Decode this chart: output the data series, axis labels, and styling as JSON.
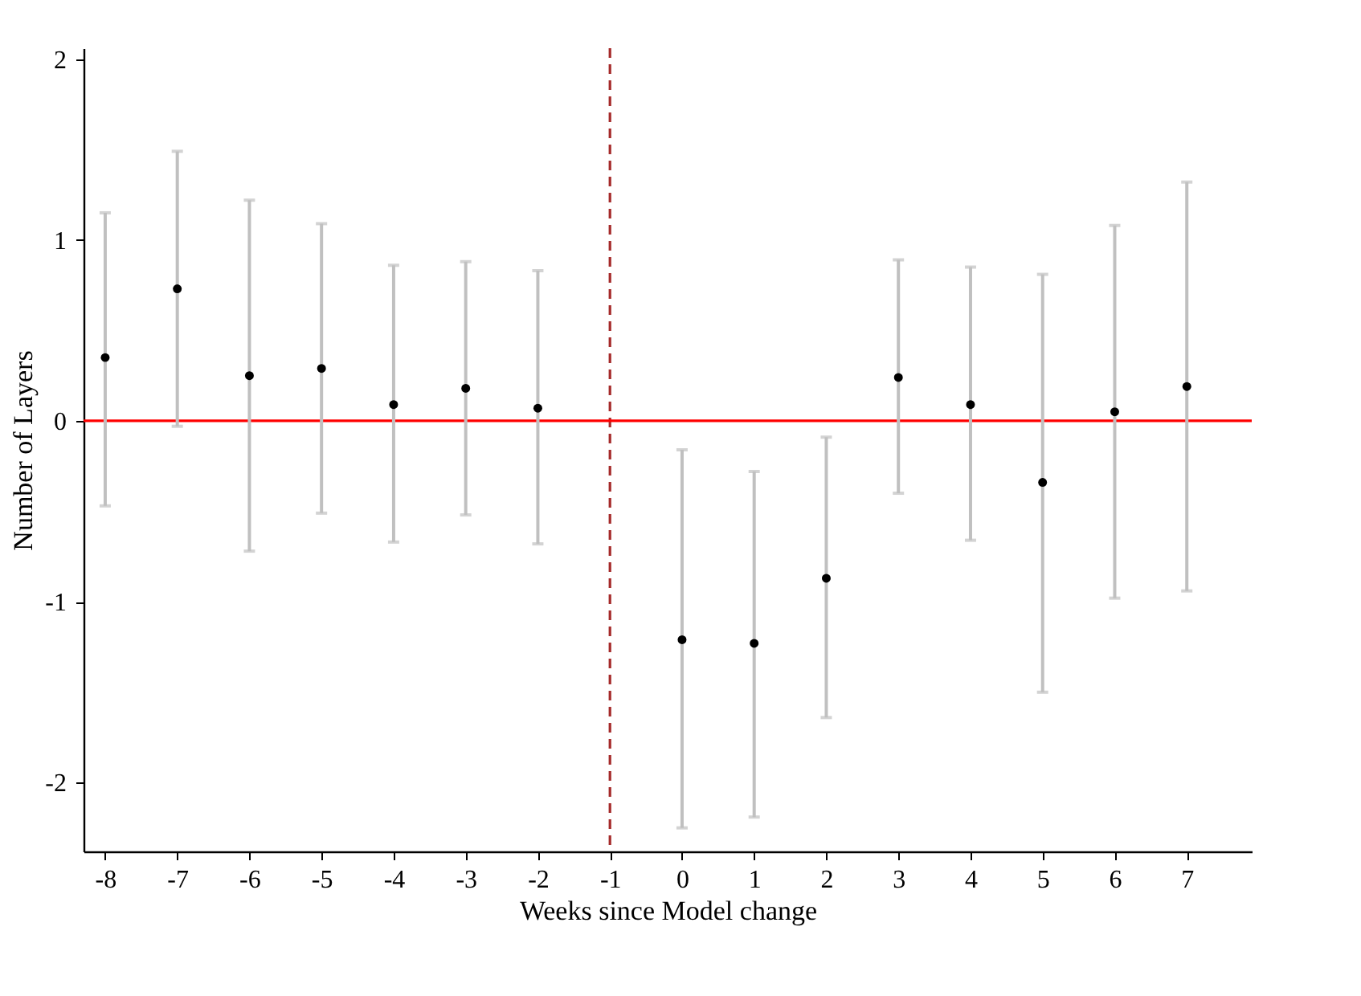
{
  "chart_data": {
    "type": "scatter",
    "xlabel": "Weeks since Model change",
    "ylabel": "Number of Layers",
    "x": [
      -8,
      -7,
      -6,
      -5,
      -4,
      -3,
      -2,
      0,
      1,
      2,
      3,
      4,
      5,
      6,
      7
    ],
    "series": [
      {
        "color": "#000000",
        "values": [
          0.35,
          0.73,
          0.25,
          0.29,
          0.09,
          0.18,
          0.07,
          -1.21,
          -1.23,
          -0.87,
          0.24,
          0.09,
          -0.34,
          0.05,
          0.19
        ],
        "errors": [
          [
            -0.47,
            1.15
          ],
          [
            -0.03,
            1.49
          ],
          [
            -0.72,
            1.22
          ],
          [
            -0.51,
            1.09
          ],
          [
            -0.67,
            0.86
          ],
          [
            -0.52,
            0.88
          ],
          [
            -0.68,
            0.83
          ],
          [
            -2.25,
            -0.16
          ],
          [
            -2.19,
            -0.28
          ],
          [
            -1.64,
            -0.09
          ],
          [
            -0.4,
            0.89
          ],
          [
            -0.66,
            0.85
          ],
          [
            -1.5,
            0.81
          ],
          [
            -0.98,
            1.08
          ],
          [
            -0.94,
            1.32
          ]
        ]
      }
    ],
    "xlim": [
      -8.3,
      7.9
    ],
    "xticks": [
      -8,
      -7,
      -6,
      -5,
      -4,
      -3,
      -2,
      -1,
      0,
      1,
      2,
      3,
      4,
      5,
      6,
      7
    ],
    "ylim": [
      -2.38,
      2.06
    ],
    "yticks": [
      -2,
      -1,
      0,
      1,
      2
    ],
    "ref_lines": [
      {
        "axis": "y",
        "value": 0,
        "color": "#ff0000",
        "line_style": "solid"
      },
      {
        "axis": "x",
        "value": -1,
        "color": "#a52a2a",
        "line_style": "dashed"
      }
    ],
    "grid": false,
    "marker": "circle"
  }
}
